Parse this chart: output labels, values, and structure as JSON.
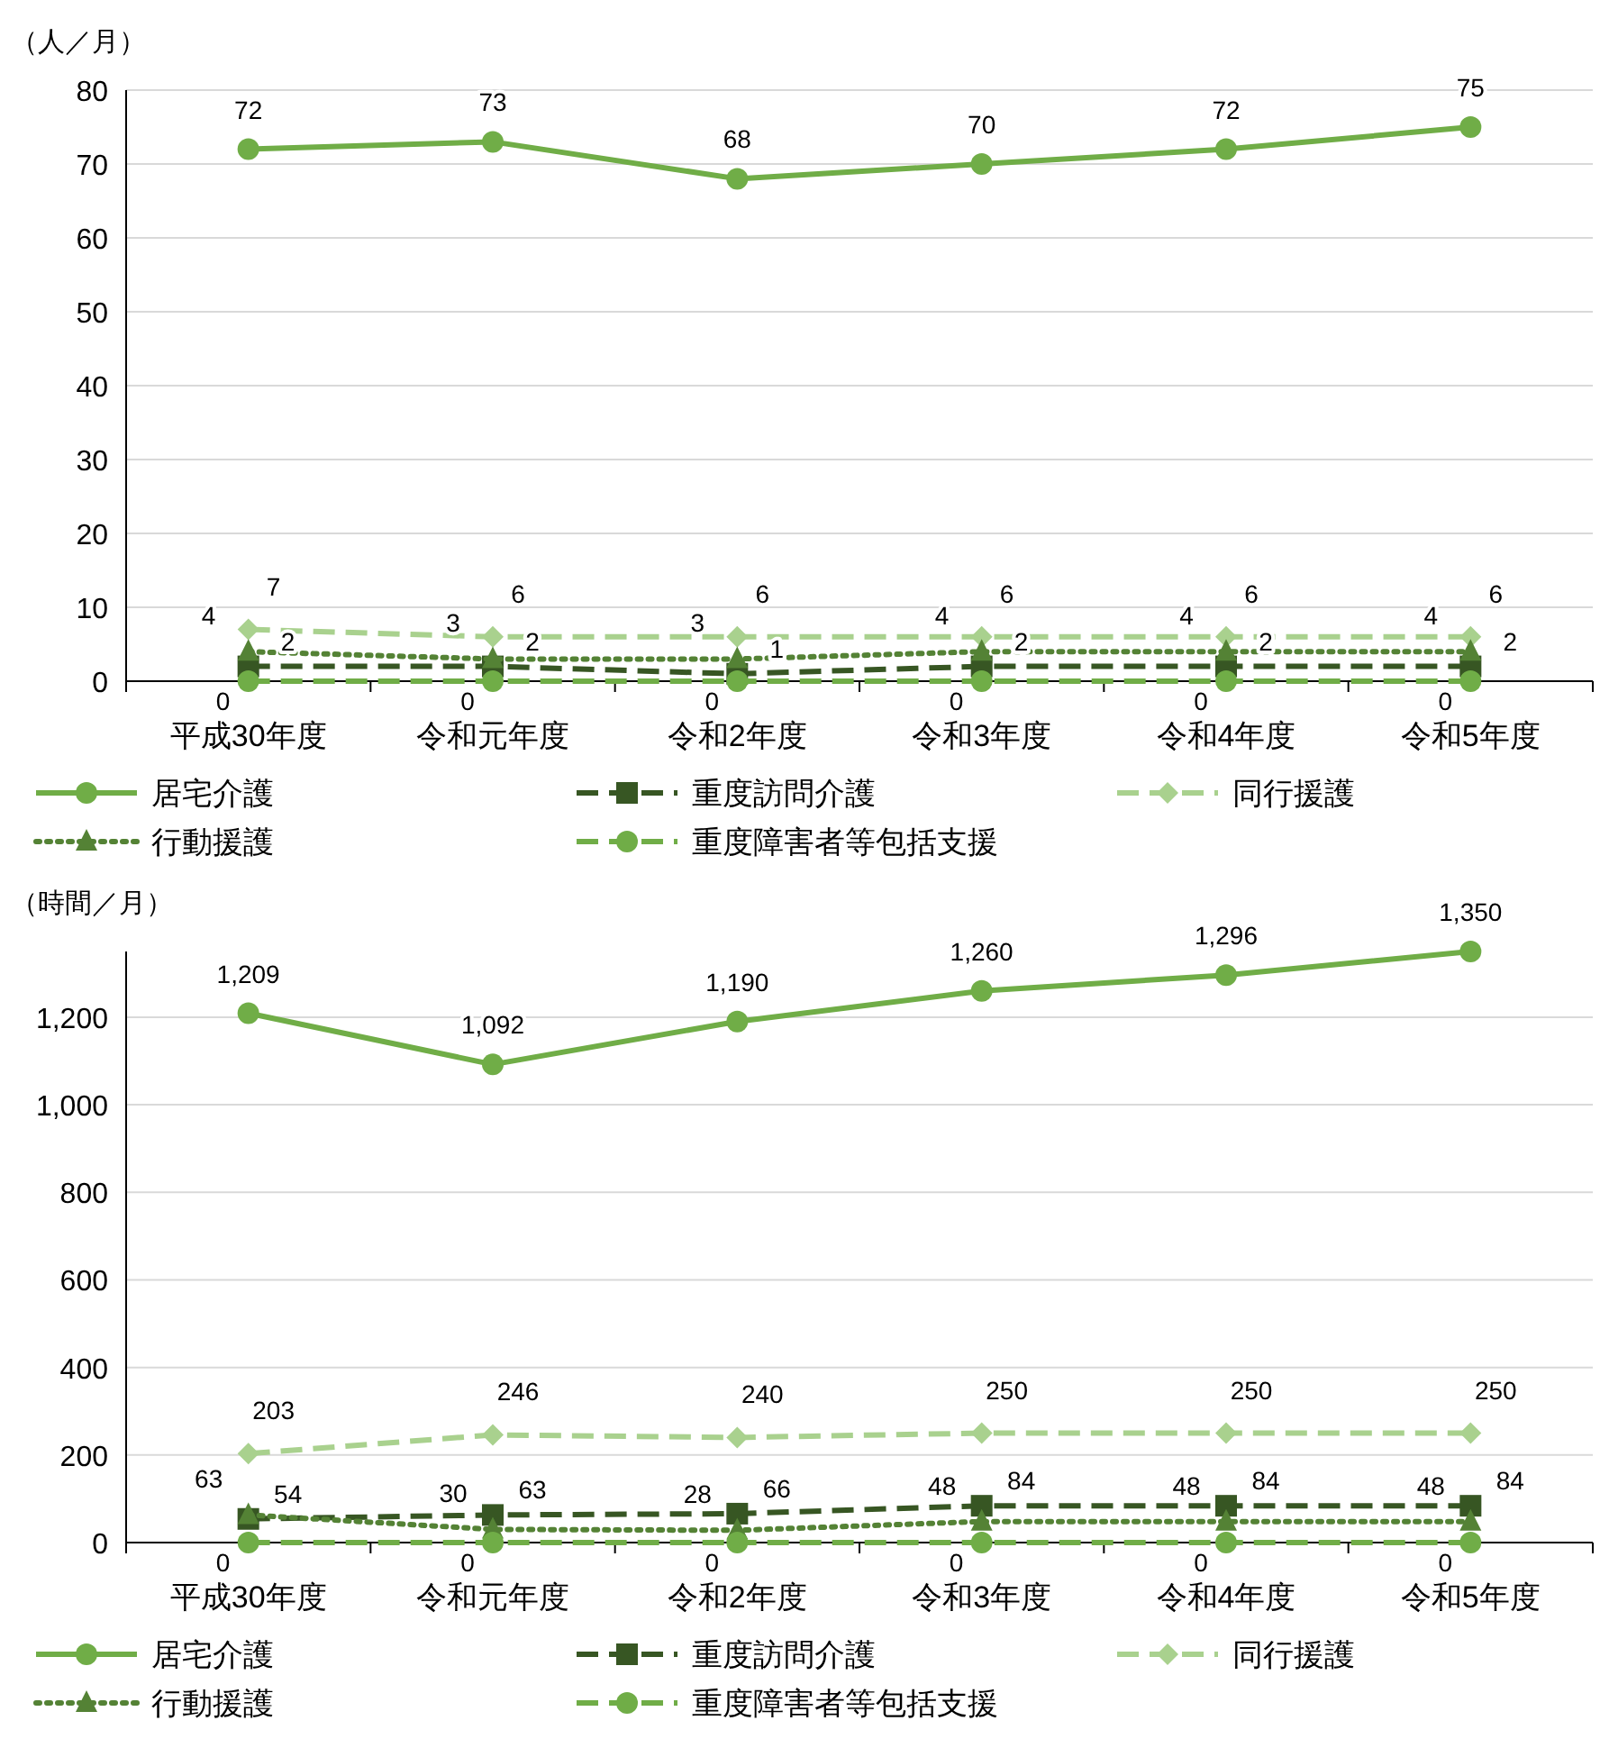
{
  "chart_data": [
    {
      "type": "line",
      "ylabel": "（人／月）",
      "categories": [
        "平成30年度",
        "令和元年度",
        "令和2年度",
        "令和3年度",
        "令和4年度",
        "令和5年度"
      ],
      "ylim": [
        0,
        80
      ],
      "yticks": [
        0,
        10,
        20,
        30,
        40,
        50,
        60,
        70,
        80
      ],
      "grid": "y",
      "legend": "bottom",
      "data_labels": true,
      "series": [
        {
          "name": "居宅介護",
          "color": "#70ad47",
          "marker": "circle",
          "line_style": "solid",
          "values": [
            72,
            73,
            68,
            70,
            72,
            75
          ]
        },
        {
          "name": "重度訪問介護",
          "color": "#375623",
          "marker": "square",
          "line_style": "dashed",
          "values": [
            2,
            2,
            1,
            2,
            2,
            2
          ]
        },
        {
          "name": "同行援護",
          "color": "#a9d18e",
          "marker": "diamond",
          "line_style": "dashed",
          "values": [
            7,
            6,
            6,
            6,
            6,
            6
          ]
        },
        {
          "name": "行動援護",
          "color": "#548235",
          "marker": "triangle",
          "line_style": "dotted",
          "values": [
            4,
            3,
            3,
            4,
            4,
            4
          ]
        },
        {
          "name": "重度障害者等包括支援",
          "color": "#70ad47",
          "marker": "circle",
          "line_style": "dashed",
          "values": [
            0,
            0,
            0,
            0,
            0,
            0
          ]
        }
      ]
    },
    {
      "type": "line",
      "ylabel": "（時間／月）",
      "categories": [
        "平成30年度",
        "令和元年度",
        "令和2年度",
        "令和3年度",
        "令和4年度",
        "令和5年度"
      ],
      "ylim": [
        0,
        1350
      ],
      "yticks": [
        0,
        {
          "value": 200,
          "label": "200"
        },
        {
          "value": 400,
          "label": "400"
        },
        {
          "value": 600,
          "label": "600"
        },
        {
          "value": 800,
          "label": "800"
        },
        {
          "value": 1000,
          "label": "1,000"
        },
        {
          "value": 1200,
          "label": "1,200"
        }
      ],
      "grid": "y",
      "legend": "bottom",
      "data_labels": true,
      "series": [
        {
          "name": "居宅介護",
          "color": "#70ad47",
          "marker": "circle",
          "line_style": "solid",
          "values": [
            1209,
            1092,
            1190,
            1260,
            1296,
            1350
          ],
          "value_labels": [
            "1,209",
            "1,092",
            "1,190",
            "1,260",
            "1,296",
            "1,350"
          ]
        },
        {
          "name": "重度訪問介護",
          "color": "#375623",
          "marker": "square",
          "line_style": "dashed",
          "values": [
            54,
            63,
            66,
            84,
            84,
            84
          ]
        },
        {
          "name": "同行援護",
          "color": "#a9d18e",
          "marker": "diamond",
          "line_style": "dashed",
          "values": [
            203,
            246,
            240,
            250,
            250,
            250
          ]
        },
        {
          "name": "行動援護",
          "color": "#548235",
          "marker": "triangle",
          "line_style": "dotted",
          "values": [
            63,
            30,
            28,
            48,
            48,
            48
          ]
        },
        {
          "name": "重度障害者等包括支援",
          "color": "#70ad47",
          "marker": "circle",
          "line_style": "dashed",
          "values": [
            0,
            0,
            0,
            0,
            0,
            0
          ]
        }
      ]
    }
  ]
}
